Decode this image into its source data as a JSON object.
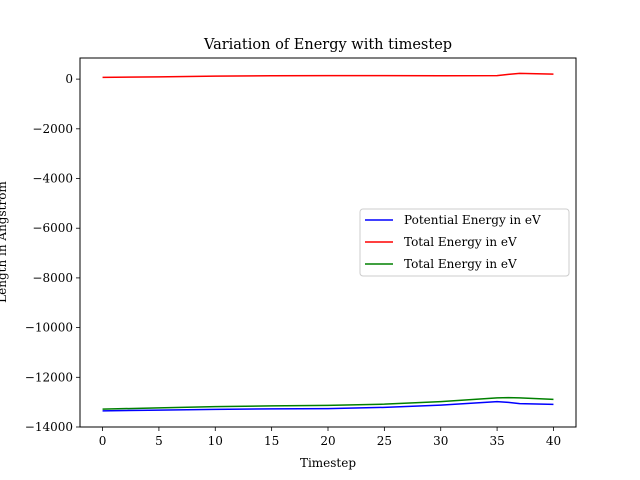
{
  "chart_data": {
    "type": "line",
    "title": "Variation of Energy with timestep",
    "xlabel": "Timestep",
    "ylabel": "Length in Angstrom",
    "xlim": [
      -2,
      42
    ],
    "ylim": [
      -14000,
      850
    ],
    "xticks": [
      0,
      5,
      10,
      15,
      20,
      25,
      30,
      35,
      40
    ],
    "yticks": [
      0,
      -2000,
      -4000,
      -6000,
      -8000,
      -10000,
      -12000,
      -14000
    ],
    "ytick_labels": [
      "0",
      "−2000",
      "−4000",
      "−6000",
      "−8000",
      "−10000",
      "−12000",
      "−14000"
    ],
    "grid": false,
    "legend_position": "center-right",
    "x": [
      0,
      5,
      10,
      15,
      20,
      25,
      30,
      35,
      36,
      37,
      40
    ],
    "series": [
      {
        "name": "Potential Energy in eV",
        "color": "#0000ff",
        "values": [
          -13350,
          -13320,
          -13290,
          -13270,
          -13260,
          -13210,
          -13120,
          -12980,
          -13010,
          -13060,
          -13090
        ]
      },
      {
        "name": "Total Energy in eV",
        "color": "#ff0000",
        "values": [
          70,
          90,
          120,
          135,
          140,
          140,
          135,
          140,
          190,
          230,
          200
        ]
      },
      {
        "name": "Total Energy in eV",
        "color": "#008000",
        "values": [
          -13280,
          -13230,
          -13180,
          -13150,
          -13130,
          -13080,
          -12980,
          -12830,
          -12820,
          -12830,
          -12890
        ]
      }
    ]
  }
}
